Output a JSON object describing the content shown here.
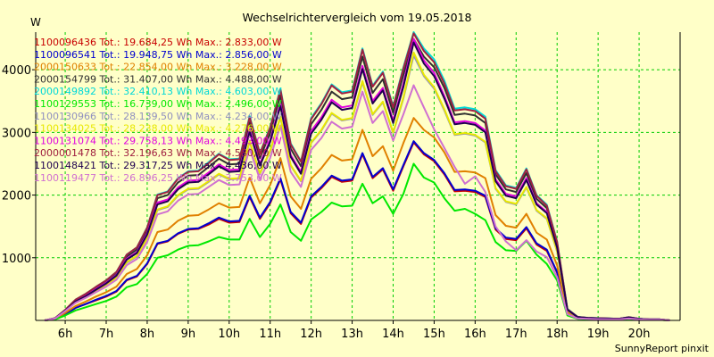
{
  "chart_data": {
    "type": "line",
    "title": "Wechselrichtervergleich vom 19.05.2018",
    "ylabel": "W",
    "footer": "SunnyReport pinxit",
    "ylim": [
      0,
      4600
    ],
    "yticks": [
      1000,
      2000,
      3000,
      4000
    ],
    "xlim": [
      5.28,
      21.0
    ],
    "xticks": [
      {
        "x": 6,
        "label": "6h"
      },
      {
        "x": 7,
        "label": "7h"
      },
      {
        "x": 8,
        "label": "8h"
      },
      {
        "x": 9,
        "label": "9h"
      },
      {
        "x": 10,
        "label": "10h"
      },
      {
        "x": 11,
        "label": "11h"
      },
      {
        "x": 12,
        "label": "12h"
      },
      {
        "x": 13,
        "label": "13h"
      },
      {
        "x": 14,
        "label": "14h"
      },
      {
        "x": 15,
        "label": "15h"
      },
      {
        "x": 16,
        "label": "16h"
      },
      {
        "x": 17,
        "label": "17h"
      },
      {
        "x": 18,
        "label": "18h"
      },
      {
        "x": 19,
        "label": "19h"
      },
      {
        "x": 20,
        "label": "20h"
      }
    ],
    "grid": true,
    "legend_position": "top-left",
    "x": [
      5.5,
      5.75,
      6.0,
      6.25,
      6.5,
      6.75,
      7.0,
      7.25,
      7.5,
      7.75,
      8.0,
      8.25,
      8.5,
      8.75,
      9.0,
      9.25,
      9.5,
      9.75,
      10.0,
      10.25,
      10.5,
      10.75,
      11.0,
      11.25,
      11.5,
      11.75,
      12.0,
      12.25,
      12.5,
      12.75,
      13.0,
      13.25,
      13.5,
      13.75,
      14.0,
      14.25,
      14.5,
      14.75,
      15.0,
      15.25,
      15.5,
      15.75,
      16.0,
      16.25,
      16.5,
      16.75,
      17.0,
      17.25,
      17.5,
      17.75,
      18.0,
      18.25,
      18.5,
      18.75,
      19.0,
      19.25,
      19.5,
      19.75,
      20.0,
      20.25,
      20.5,
      20.75
    ],
    "series": [
      {
        "name": "1100096436",
        "total": "19.684,25",
        "max": "2.833,00",
        "color": "#c80000",
        "values": [
          0,
          20,
          100,
          200,
          260,
          320,
          380,
          460,
          640,
          700,
          900,
          1220,
          1260,
          1380,
          1450,
          1460,
          1530,
          1620,
          1560,
          1570,
          1970,
          1620,
          1870,
          2250,
          1710,
          1540,
          1960,
          2110,
          2290,
          2210,
          2230,
          2650,
          2270,
          2410,
          2070,
          2460,
          2840,
          2650,
          2540,
          2330,
          2060,
          2070,
          2050,
          1970,
          1450,
          1300,
          1280,
          1470,
          1210,
          1110,
          760,
          100,
          30,
          25,
          20,
          20,
          15,
          30,
          15,
          10,
          10,
          0
        ]
      },
      {
        "name": "1100096541",
        "total": "19.948,75",
        "max": "2.856,00",
        "color": "#0000d0",
        "values": [
          0,
          20,
          100,
          200,
          260,
          330,
          390,
          470,
          650,
          710,
          910,
          1230,
          1270,
          1390,
          1460,
          1470,
          1550,
          1640,
          1580,
          1590,
          1990,
          1640,
          1890,
          2270,
          1730,
          1560,
          1980,
          2130,
          2310,
          2230,
          2250,
          2670,
          2290,
          2430,
          2090,
          2480,
          2860,
          2670,
          2560,
          2350,
          2080,
          2090,
          2070,
          1990,
          1470,
          1320,
          1300,
          1490,
          1230,
          1130,
          770,
          110,
          35,
          25,
          20,
          20,
          15,
          30,
          15,
          10,
          10,
          0
        ]
      },
      {
        "name": "2000150633",
        "total": "22.854,00",
        "max": "3.228,00",
        "color": "#e08000",
        "values": [
          0,
          25,
          120,
          230,
          300,
          380,
          450,
          540,
          740,
          820,
          1040,
          1410,
          1450,
          1590,
          1670,
          1680,
          1770,
          1870,
          1800,
          1810,
          2280,
          1870,
          2160,
          2590,
          1980,
          1780,
          2260,
          2430,
          2640,
          2550,
          2570,
          3040,
          2620,
          2780,
          2390,
          2830,
          3230,
          3040,
          2920,
          2680,
          2370,
          2380,
          2360,
          2270,
          1680,
          1510,
          1480,
          1700,
          1400,
          1290,
          880,
          130,
          40,
          30,
          25,
          20,
          18,
          35,
          18,
          12,
          12,
          0
        ]
      },
      {
        "name": "2000154799",
        "total": "31.407,00",
        "max": "4.488,00",
        "color": "#303030",
        "values": [
          0,
          35,
          165,
          320,
          410,
          520,
          620,
          750,
          1020,
          1130,
          1440,
          1950,
          2000,
          2200,
          2310,
          2320,
          2450,
          2580,
          2490,
          2500,
          3160,
          2590,
          2990,
          3590,
          2740,
          2460,
          3130,
          3360,
          3650,
          3530,
          3560,
          4210,
          3630,
          3850,
          3310,
          3920,
          4490,
          4210,
          4040,
          3710,
          3280,
          3300,
          3270,
          3150,
          2330,
          2090,
          2050,
          2350,
          1940,
          1790,
          1220,
          180,
          55,
          40,
          35,
          30,
          25,
          50,
          25,
          15,
          15,
          0
        ]
      },
      {
        "name": "2000149892",
        "total": "32.410,13",
        "max": "4.603,00",
        "color": "#00d8d8",
        "values": [
          0,
          35,
          170,
          330,
          425,
          535,
          640,
          775,
          1050,
          1165,
          1485,
          2010,
          2060,
          2270,
          2380,
          2390,
          2525,
          2660,
          2570,
          2580,
          3260,
          2670,
          3085,
          3700,
          2825,
          2540,
          3230,
          3465,
          3765,
          3640,
          3670,
          4340,
          3745,
          3970,
          3415,
          4040,
          4600,
          4340,
          4165,
          3825,
          3380,
          3400,
          3370,
          3250,
          2400,
          2155,
          2115,
          2425,
          2000,
          1845,
          1260,
          185,
          57,
          42,
          36,
          31,
          26,
          52,
          26,
          16,
          16,
          0
        ]
      },
      {
        "name": "1100129553",
        "total": "16.739,00",
        "max": "2.496,00",
        "color": "#00e800",
        "values": [
          0,
          15,
          80,
          160,
          210,
          260,
          310,
          380,
          530,
          580,
          740,
          1000,
          1040,
          1130,
          1190,
          1200,
          1260,
          1330,
          1290,
          1290,
          1620,
          1330,
          1540,
          1850,
          1410,
          1270,
          1610,
          1730,
          1880,
          1820,
          1830,
          2180,
          1870,
          1980,
          1700,
          2020,
          2500,
          2280,
          2200,
          1950,
          1750,
          1780,
          1700,
          1600,
          1250,
          1120,
          1110,
          1270,
          1050,
          900,
          640,
          80,
          25,
          20,
          18,
          15,
          12,
          25,
          12,
          8,
          8,
          0
        ]
      },
      {
        "name": "1100130966",
        "total": "28.139,50",
        "max": "4.234,00",
        "color": "#9090c0",
        "values": [
          0,
          30,
          150,
          290,
          370,
          470,
          560,
          680,
          920,
          1020,
          1300,
          1760,
          1810,
          1990,
          2090,
          2100,
          2210,
          2330,
          2250,
          2260,
          2850,
          2340,
          2700,
          3240,
          2470,
          2220,
          2830,
          3030,
          3300,
          3190,
          3220,
          3800,
          3280,
          3480,
          2990,
          3540,
          4230,
          3900,
          3700,
          3350,
          2960,
          2980,
          2950,
          2840,
          2100,
          1890,
          1850,
          2120,
          1750,
          1620,
          1100,
          160,
          50,
          36,
          32,
          27,
          23,
          45,
          23,
          14,
          14,
          0
        ]
      },
      {
        "name": "1100134025",
        "total": "28.238,00",
        "max": "4.276,00",
        "color": "#e8e800",
        "values": [
          0,
          30,
          150,
          290,
          370,
          470,
          560,
          680,
          930,
          1030,
          1310,
          1770,
          1820,
          2000,
          2100,
          2110,
          2220,
          2340,
          2260,
          2270,
          2860,
          2350,
          2710,
          3250,
          2480,
          2230,
          2840,
          3040,
          3310,
          3200,
          3230,
          3820,
          3290,
          3490,
          3000,
          3560,
          4276,
          3920,
          3720,
          3370,
          2970,
          2990,
          2960,
          2850,
          2110,
          1900,
          1860,
          2130,
          1760,
          1630,
          1110,
          160,
          50,
          36,
          32,
          27,
          23,
          45,
          23,
          14,
          14,
          0
        ]
      },
      {
        "name": "1100131074",
        "total": "29.758,13",
        "max": "4.493,00",
        "color": "#e000e0",
        "values": [
          0,
          32,
          160,
          310,
          395,
          500,
          600,
          725,
          985,
          1090,
          1390,
          1880,
          1930,
          2120,
          2230,
          2240,
          2360,
          2490,
          2400,
          2410,
          3050,
          2500,
          2880,
          3460,
          2640,
          2370,
          3020,
          3240,
          3520,
          3400,
          3430,
          4060,
          3500,
          3710,
          3190,
          3780,
          4493,
          4150,
          3950,
          3580,
          3160,
          3180,
          3150,
          3030,
          2250,
          2020,
          1980,
          2270,
          1870,
          1730,
          1180,
          170,
          52,
          38,
          34,
          29,
          24,
          48,
          24,
          15,
          15,
          0
        ]
      },
      {
        "name": "2000001478",
        "total": "32.196,63",
        "max": "4.580,00",
        "color": "#a02040",
        "values": [
          0,
          36,
          170,
          330,
          425,
          535,
          640,
          775,
          1050,
          1165,
          1480,
          2000,
          2050,
          2260,
          2370,
          2380,
          2510,
          2650,
          2560,
          2570,
          3240,
          2660,
          3070,
          3680,
          2810,
          2530,
          3210,
          3450,
          3750,
          3620,
          3650,
          4320,
          3730,
          3950,
          3400,
          4020,
          4580,
          4300,
          4120,
          3780,
          3350,
          3370,
          3340,
          3220,
          2380,
          2140,
          2100,
          2410,
          1990,
          1830,
          1250,
          180,
          56,
          41,
          36,
          31,
          26,
          51,
          26,
          16,
          16,
          0
        ]
      },
      {
        "name": "1100148421",
        "total": "29.317,25",
        "max": "4.436,00",
        "color": "#200050",
        "values": [
          0,
          32,
          155,
          300,
          385,
          490,
          590,
          715,
          970,
          1075,
          1370,
          1850,
          1900,
          2090,
          2200,
          2210,
          2330,
          2460,
          2370,
          2380,
          3010,
          2470,
          2850,
          3420,
          2610,
          2340,
          2980,
          3200,
          3480,
          3360,
          3390,
          4010,
          3460,
          3670,
          3150,
          3730,
          4436,
          4100,
          3900,
          3540,
          3130,
          3150,
          3120,
          3000,
          2220,
          1990,
          1950,
          2240,
          1850,
          1710,
          1160,
          170,
          52,
          38,
          34,
          29,
          24,
          48,
          24,
          15,
          15,
          0
        ]
      },
      {
        "name": "1100119477",
        "total": "26.896,25",
        "max": "3.753,00",
        "color": "#d070d0",
        "values": [
          0,
          30,
          150,
          280,
          360,
          450,
          540,
          650,
          880,
          980,
          1250,
          1690,
          1740,
          1910,
          2010,
          2020,
          2130,
          2240,
          2160,
          2170,
          2740,
          2250,
          2590,
          3110,
          2370,
          2130,
          2720,
          2910,
          3170,
          3060,
          3090,
          3650,
          3150,
          3340,
          2870,
          3290,
          3753,
          3400,
          3050,
          2750,
          2450,
          2180,
          2300,
          2050,
          1500,
          1260,
          1120,
          1280,
          1100,
          1010,
          690,
          100,
          32,
          24,
          20,
          18,
          15,
          30,
          15,
          10,
          10,
          0
        ]
      }
    ]
  }
}
